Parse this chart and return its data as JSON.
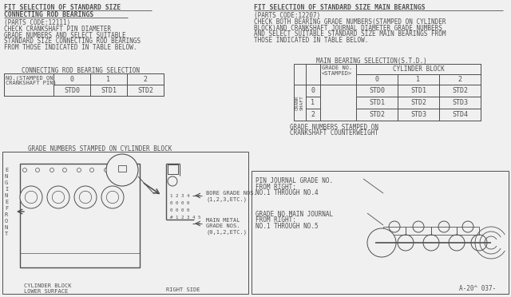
{
  "bg_color": "#f0f0f0",
  "white": "#ffffff",
  "line_color": "#505050",
  "text_color": "#505050",
  "left_title1": "FIT SELECTION OF STANDARD SIZE",
  "left_title2": "CONNECTING ROD BEARINGS",
  "left_parts": "(PARTS CODE:12111)",
  "left_body_lines": [
    "CHECK CRANKSHAFT PIN DIAMETER",
    "GRADE NUMBERS AND SELECT SUITABLE",
    "STANDARD SIZE CONNECTING ROD BEARINGS",
    "FROM THOSE INDICATED IN TABLE BELOW."
  ],
  "rod_table_title": "CONNECTING ROD BEARING SELECTION",
  "rod_col_header_line1": "NO.(STAMPED ON",
  "rod_col_header_line2": "CRANKSHAFT PIN)",
  "rod_cols": [
    "0",
    "1",
    "2"
  ],
  "rod_vals": [
    "STD0",
    "STD1",
    "STD2"
  ],
  "right_title1": "FIT SELECTION OF STANDARD SIZE MAIN BEARINGS",
  "right_parts": "(PARTS CODE:12207)",
  "right_body_lines": [
    "CHECK BOTH BEARING GRADE NUMBERS(STAMPED ON CYLINDER",
    "BLOCK)AND CRANKSHAFT JOURNAL DIAMETER GRADE NUMBERS",
    "AND SELECT SUITABLE STANDARD SIZE MAIN BEARINGS FROM",
    "THOSE INDICATED IN TABLE BELOW."
  ],
  "main_table_title": "MAIN BEARING SELECTION(S.T.D.)",
  "main_grade_line1": "GRADE NO.",
  "main_grade_line2": "<STAMPED>",
  "main_block_header": "CYLINDER BLOCK",
  "main_cols": [
    "0",
    "1",
    "2"
  ],
  "main_rows": [
    "0",
    "1",
    "2"
  ],
  "main_vals": [
    [
      "STD0",
      "STD1",
      "STD2"
    ],
    [
      "STD1",
      "STD2",
      "STD3"
    ],
    [
      "STD2",
      "STD3",
      "STD4"
    ]
  ],
  "grade_stamp_title": "GRADE NUMBERS STAMPED ON CYLINDER BLOCK",
  "engine_front_lines": [
    "E",
    "N",
    "G",
    "I",
    "N",
    "E",
    "F",
    "R",
    "O",
    "N",
    "T"
  ],
  "cyl_block_label1": "CYLINDER BLOCK",
  "cyl_block_label2": "LOWER SURFACE",
  "right_side_label": "RIGHT SIDE",
  "bore_label_lines": [
    "BORE GRADE NOS.",
    "(1,2,3,ETC.)"
  ],
  "main_metal_label_lines": [
    "MAIN METAL",
    "GRADE NOS.",
    "(0,1,2,ETC.)"
  ],
  "crank_section_title1": "GRADE NUMBERS STAMPED ON",
  "crank_section_title2": "CRANKSHAFT COUNTERWEIGHT",
  "pin_journal_lines": [
    "PIN JOURNAL GRADE NO.",
    "FROM RIGHT:",
    "NO.1 THROUGH NO.4"
  ],
  "main_journal_lines": [
    "GRADE NO.MAIN JOURNAL",
    "FROM RIGHT:",
    "NO.1 THROUGH NO.5"
  ],
  "ref_label": "A-20^ 037-"
}
